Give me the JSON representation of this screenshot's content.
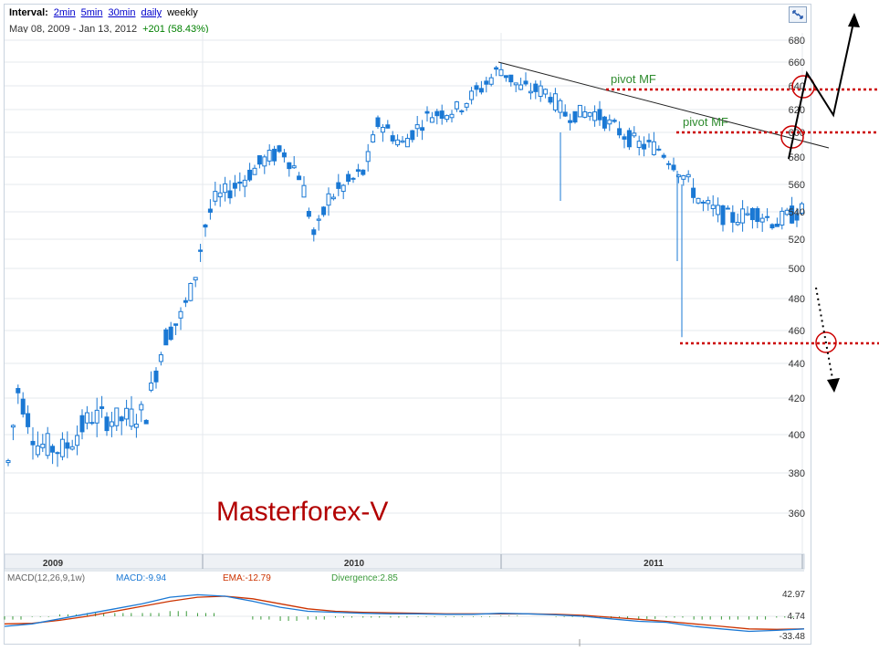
{
  "header": {
    "interval_label": "Interval:",
    "intervals": [
      "2min",
      "5min",
      "30min",
      "daily"
    ],
    "current_interval": "weekly",
    "date_start": "May 08, 2009",
    "date_sep": "-",
    "date_end": "Jan 13, 2012",
    "change": "+201 (58.43%)"
  },
  "macd": {
    "name": "MACD(12,26,9,1w)",
    "macd_label": "MACD:-9.94",
    "ema_label": "EMA:-12.79",
    "divergence_label": "Divergence:2.85",
    "axis_labels": [
      "42.97",
      "4.74",
      "-33.48"
    ],
    "colors": {
      "macd": "#1a78d4",
      "ema": "#cc3300",
      "divergence": "#3a9a3a"
    }
  },
  "annotations": {
    "watermark": "Masterforex-V",
    "pivot_labels": [
      "pivot MF",
      "pivot MF"
    ],
    "colors": {
      "watermark": "#b20000",
      "pivot_text": "#2e8b2e",
      "pivot_line": "#cc0000",
      "trendline": "#222222",
      "candle": "#1a78d4"
    }
  },
  "chart_data": {
    "type": "candlestick",
    "y_ticks": [
      360,
      380,
      400,
      420,
      440,
      460,
      480,
      500,
      520,
      540,
      560,
      580,
      600,
      620,
      640,
      660,
      680
    ],
    "ylim": [
      345,
      682
    ],
    "x_labels": [
      "2009",
      "2010",
      "2011"
    ],
    "grid": true,
    "pivot_levels": [
      636,
      600,
      455
    ],
    "trendline": {
      "start": [
        "2010-05",
        663
      ],
      "end": [
        "2012-02",
        595
      ]
    },
    "macd_series": {
      "macd": [
        -20,
        -15,
        -5,
        5,
        15,
        25,
        38,
        43,
        40,
        30,
        18,
        10,
        8,
        6,
        5,
        5,
        4,
        4,
        6,
        5,
        3,
        0,
        -5,
        -10,
        -12,
        -20,
        -25,
        -30,
        -28,
        -25
      ],
      "ema": [
        -15,
        -14,
        -8,
        0,
        10,
        20,
        30,
        38,
        40,
        35,
        25,
        15,
        10,
        8,
        7,
        6,
        5,
        5,
        5,
        5,
        4,
        2,
        -2,
        -6,
        -10,
        -15,
        -20,
        -25,
        -26,
        -25
      ]
    }
  }
}
